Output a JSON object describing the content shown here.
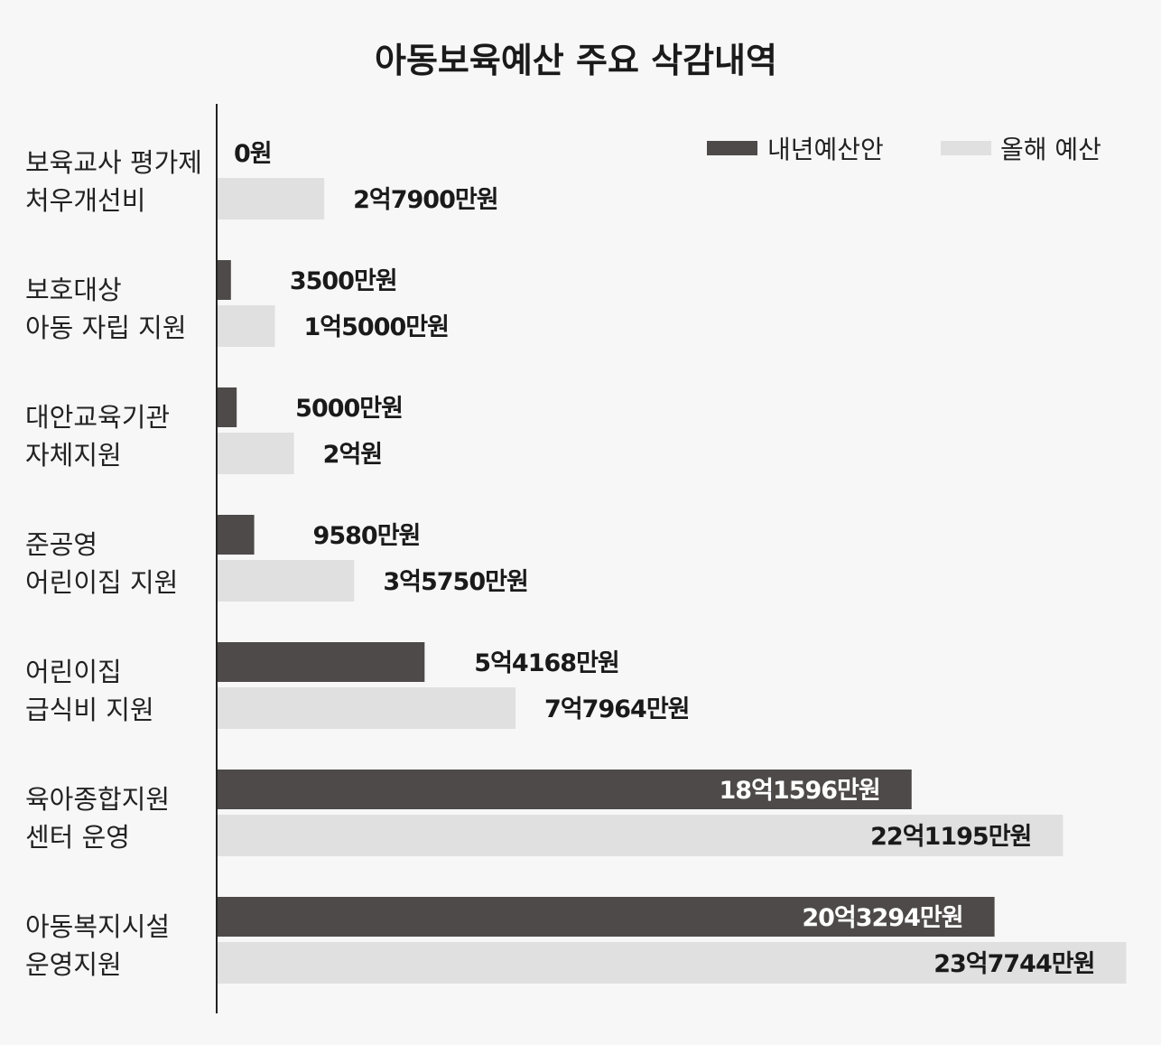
{
  "chart_data": {
    "type": "bar",
    "orientation": "horizontal",
    "title": "아동보육예산 주요 삭감내역",
    "unit": "원",
    "categories": [
      [
        "보육교사 평가제",
        "처우개선비"
      ],
      [
        "보호대상",
        "아동 자립 지원"
      ],
      [
        "대안교육기관",
        "자체지원"
      ],
      [
        "준공영",
        "어린이집 지원"
      ],
      [
        "어린이집",
        "급식비 지원"
      ],
      [
        "육아종합지원",
        "센터 운영"
      ],
      [
        "아동복지시설",
        "운영지원"
      ]
    ],
    "series": [
      {
        "name": "내년예산안",
        "color": "#4d4a49",
        "values_manwon": [
          0,
          3500,
          5000,
          9580,
          54168,
          181596,
          203294
        ],
        "labels": [
          "0원",
          "3500만원",
          "5000만원",
          "9580만원",
          "5억4168만원",
          "18억1596만원",
          "20억3294만원"
        ]
      },
      {
        "name": "올해 예산",
        "color": "#e0e0e0",
        "values_manwon": [
          27900,
          15000,
          20000,
          35750,
          77964,
          221195,
          237744
        ],
        "labels": [
          "2억7900만원",
          "1억5000만원",
          "2억원",
          "3억5750만원",
          "7억7964만원",
          "22억1195만원",
          "23억7744만원"
        ]
      }
    ],
    "legend_position": "top-right",
    "grid": false
  }
}
